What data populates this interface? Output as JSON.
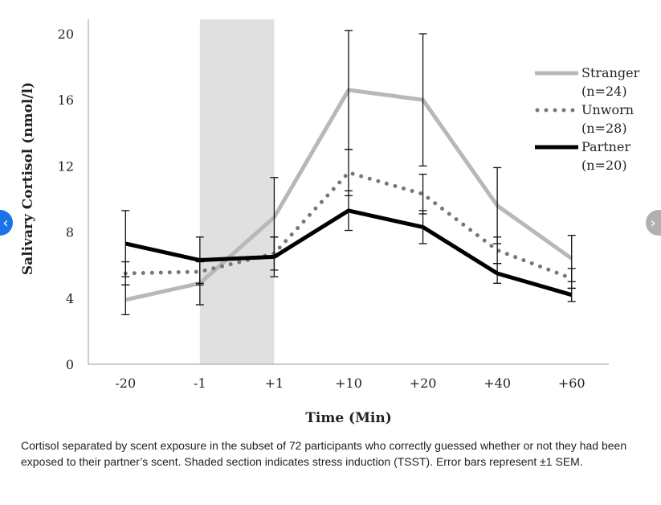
{
  "chart_data": {
    "type": "line",
    "categories": [
      "-20",
      "-1",
      "+1",
      "+10",
      "+20",
      "+40",
      "+60"
    ],
    "ylabel": "Salivary Cortisol (nmol/l)",
    "xlabel": "Time (Min)",
    "ylim": [
      0,
      20
    ],
    "yticks": [
      "0",
      "4",
      "8",
      "12",
      "16",
      "20"
    ],
    "grid": false,
    "legend_position": "top-right",
    "shaded_region": {
      "from": "-1",
      "to": "+1",
      "color": "#e0e0e0"
    },
    "series": [
      {
        "name": "Stranger",
        "label_lines": [
          "Stranger",
          "(n=24)"
        ],
        "style": "solid",
        "color": "#b8b8b8",
        "values": [
          3.9,
          4.9,
          8.9,
          16.6,
          16.0,
          9.6,
          6.4
        ],
        "error": [
          0.9,
          1.3,
          2.4,
          3.6,
          4.0,
          2.3,
          1.4
        ]
      },
      {
        "name": "Unworn",
        "label_lines": [
          "Unworn",
          "(n=28)"
        ],
        "style": "dotted",
        "color": "#777777",
        "values": [
          5.5,
          5.6,
          6.7,
          11.6,
          10.3,
          6.9,
          5.2
        ],
        "error": [
          0.7,
          0.8,
          1.0,
          1.4,
          1.2,
          0.8,
          0.6
        ]
      },
      {
        "name": "Partner",
        "label_lines": [
          "Partner",
          "(n=20)"
        ],
        "style": "solid",
        "color": "#000000",
        "values": [
          7.3,
          6.3,
          6.5,
          9.3,
          8.3,
          5.5,
          4.2
        ],
        "error": [
          2.0,
          1.4,
          1.2,
          1.2,
          1.0,
          0.6,
          0.4
        ]
      }
    ]
  },
  "caption": "Cortisol separated by scent exposure in the subset of 72 participants who correctly guessed whether or not they had been exposed to their partner’s scent. Shaded section indicates stress induction (TSST). Error bars represent ±1 SEM.",
  "nav": {
    "prev_icon": "chevron-left-icon",
    "prev_glyph": "‹",
    "next_icon": "chevron-right-icon",
    "next_glyph": "›",
    "prev_color": "#1a73e8",
    "next_color": "#b0b0b0"
  }
}
